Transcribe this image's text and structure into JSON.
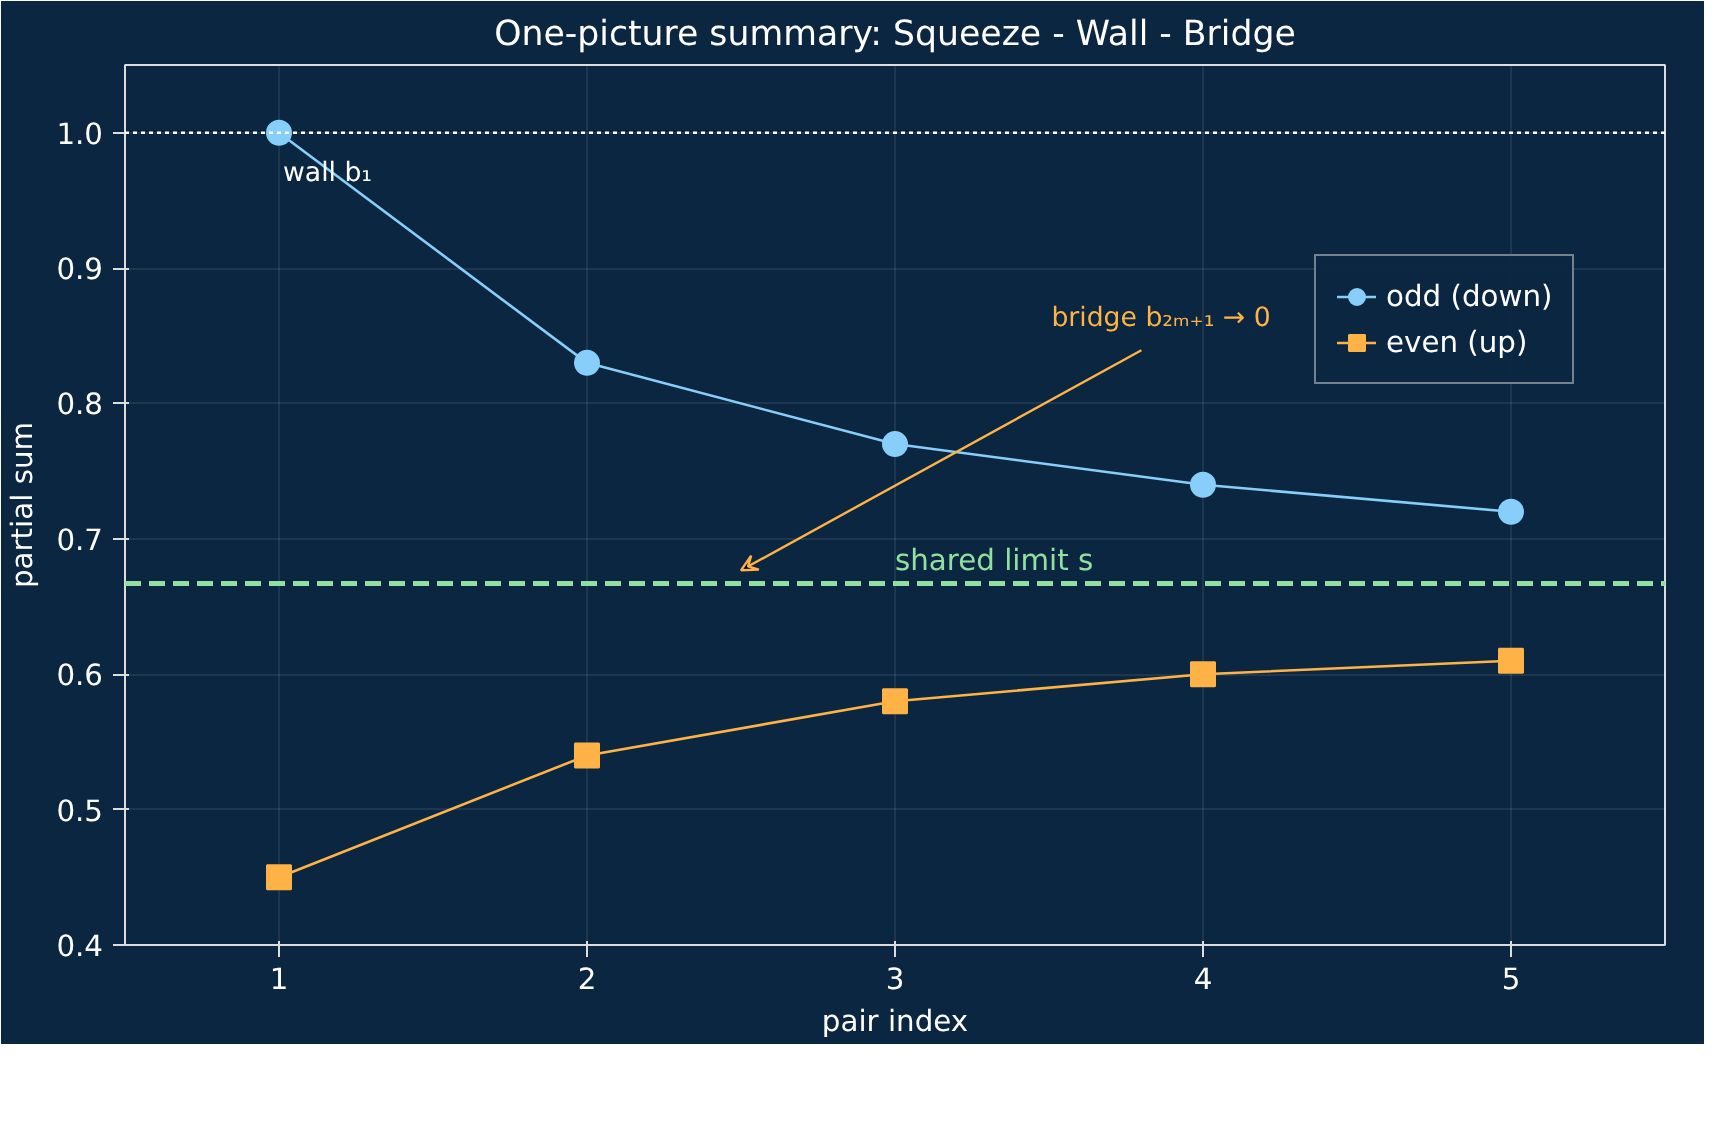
{
  "chart_data": {
    "type": "line",
    "title": "One-picture summary: Squeeze - Wall - Bridge",
    "xlabel": "pair index",
    "ylabel": "partial sum",
    "x": [
      1,
      2,
      3,
      4,
      5
    ],
    "series": [
      {
        "name": "odd (down)",
        "color": "#87cefa",
        "marker": "circle",
        "values": [
          1.0,
          0.83,
          0.77,
          0.74,
          0.72
        ]
      },
      {
        "name": "even (up)",
        "color": "#ffb347",
        "marker": "square",
        "values": [
          0.45,
          0.54,
          0.58,
          0.6,
          0.61
        ]
      }
    ],
    "xlim": [
      0.5,
      5.5
    ],
    "ylim": [
      0.4,
      1.05
    ],
    "xticks": [
      1,
      2,
      3,
      4,
      5
    ],
    "yticks": [
      {
        "value": 0.4,
        "label": "0.4"
      },
      {
        "value": 0.5,
        "label": "0.5"
      },
      {
        "value": 0.6,
        "label": "0.6"
      },
      {
        "value": 0.7,
        "label": "0.7"
      },
      {
        "value": 0.8,
        "label": "0.8"
      },
      {
        "value": 0.9,
        "label": "0.9"
      },
      {
        "value": 1.0,
        "label": "1.0"
      }
    ],
    "ref_lines": [
      {
        "axis": "y",
        "value": 1.0,
        "color": "#ffffff",
        "line_style": "dotted"
      },
      {
        "axis": "y",
        "value": 0.667,
        "label": "shared limit s",
        "color": "#90e0a0",
        "line_style": "dashed"
      }
    ],
    "annotations": [
      {
        "text": "wall b₁",
        "x": 1,
        "y": 1.0
      },
      "bridge b₂ₘ₊₁ → 0"
    ],
    "grid": true,
    "legend": "right",
    "line_style": "solid"
  }
}
